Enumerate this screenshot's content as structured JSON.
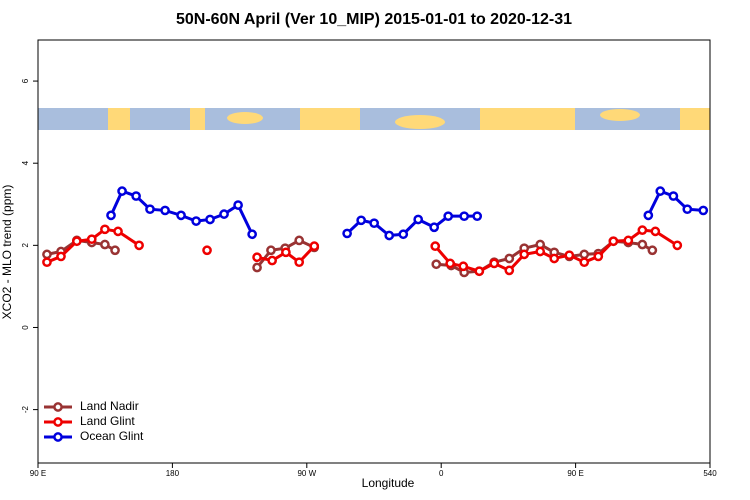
{
  "chart_data": {
    "type": "line",
    "title": "50N-60N April (Ver 10_MIP)   2015-01-01 to 2020-12-31",
    "x_label": "Longitude",
    "y_label": "XCO2 - MLO trend (ppm)",
    "xlim": [
      90,
      540
    ],
    "ylim": [
      -3.3,
      7
    ],
    "xticks": [
      {
        "value": 90,
        "label": "90 E"
      },
      180,
      {
        "value": 270,
        "label": "90 W"
      },
      {
        "value": 360,
        "label": "0"
      },
      {
        "value": 450,
        "label": "90 E"
      },
      540
    ],
    "yticks": [
      -2,
      0,
      2,
      4,
      6
    ],
    "legend": "bottom-left",
    "series": [
      {
        "name": "Land Nadir",
        "color": "#993333",
        "x": [
          96,
          105.4,
          116,
          126,
          134.8,
          141.6,
          null,
          236.7,
          246,
          255.5,
          264.9,
          275,
          null,
          356.7,
          366.7,
          375.4,
          385.5,
          395.5,
          405.6,
          415.6,
          426.3,
          435.7,
          445.8,
          455.8,
          465.2,
          475.3,
          485.3,
          494.7,
          501.4
        ],
        "values": [
          1.78,
          1.85,
          2.12,
          2.07,
          2.02,
          1.88,
          null,
          1.46,
          1.88,
          1.93,
          2.12,
          1.95,
          null,
          1.54,
          1.51,
          1.34,
          1.37,
          1.59,
          1.68,
          1.93,
          2.02,
          1.83,
          1.73,
          1.78,
          1.8,
          2.1,
          2.07,
          2.02,
          1.88
        ]
      },
      {
        "name": "Land Glint",
        "color": "#ee0000",
        "x": [
          96,
          105.4,
          116,
          126,
          134.8,
          143.6,
          157.7,
          null,
          203.2,
          null,
          236.7,
          246.8,
          256,
          264.9,
          275,
          null,
          356,
          366,
          374.8,
          385.5,
          395.5,
          405.6,
          415.6,
          426.3,
          435.7,
          445.8,
          455.8,
          465.2,
          475.3,
          485.3,
          494.7,
          503.4,
          518.1
        ],
        "values": [
          1.59,
          1.73,
          2.1,
          2.15,
          2.39,
          2.34,
          2.0,
          null,
          1.88,
          null,
          1.71,
          1.63,
          1.83,
          1.59,
          1.98,
          null,
          1.98,
          1.56,
          1.49,
          1.37,
          1.56,
          1.39,
          1.78,
          1.85,
          1.68,
          1.76,
          1.59,
          1.73,
          2.1,
          2.12,
          2.37,
          2.34,
          2.0
        ]
      },
      {
        "name": "Ocean Glint",
        "color": "#0000dd",
        "x": [
          138.9,
          146.3,
          155.7,
          165,
          175.1,
          185.8,
          195.9,
          205.2,
          214.6,
          224,
          233.4,
          null,
          297,
          306.4,
          315.1,
          325.2,
          334.6,
          344.6,
          355.3,
          364.7,
          375.4,
          384.1,
          null,
          498.7,
          506.7,
          515.5,
          524.8,
          535.5
        ],
        "values": [
          2.73,
          3.32,
          3.2,
          2.88,
          2.85,
          2.73,
          2.59,
          2.63,
          2.76,
          2.98,
          2.27,
          null,
          2.29,
          2.61,
          2.54,
          2.24,
          2.27,
          2.63,
          2.44,
          2.71,
          2.71,
          2.71,
          null,
          2.73,
          3.32,
          3.2,
          2.88,
          2.85
        ]
      }
    ]
  }
}
